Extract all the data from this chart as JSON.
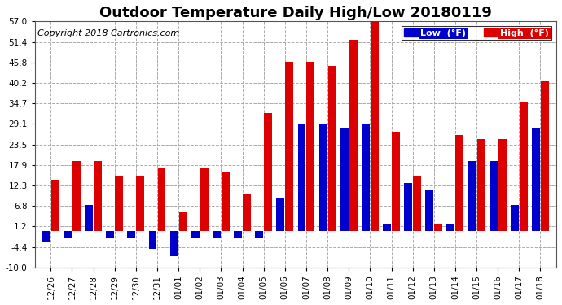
{
  "title": "Outdoor Temperature Daily High/Low 20180119",
  "copyright": "Copyright 2018 Cartronics.com",
  "dates": [
    "12/26",
    "12/27",
    "12/28",
    "12/29",
    "12/30",
    "12/31",
    "01/01",
    "01/02",
    "01/03",
    "01/04",
    "01/05",
    "01/06",
    "01/07",
    "01/08",
    "01/09",
    "01/10",
    "01/11",
    "01/12",
    "01/13",
    "01/14",
    "01/15",
    "01/16",
    "01/17",
    "01/18"
  ],
  "high": [
    14.0,
    19.0,
    19.0,
    15.0,
    15.0,
    17.0,
    5.0,
    17.0,
    16.0,
    10.0,
    32.0,
    46.0,
    46.0,
    45.0,
    52.0,
    57.0,
    27.0,
    15.0,
    2.0,
    26.0,
    25.0,
    25.0,
    35.0,
    41.0
  ],
  "low": [
    -3.0,
    -2.0,
    7.0,
    -2.0,
    -2.0,
    -5.0,
    -7.0,
    -2.0,
    -2.0,
    -2.0,
    -2.0,
    9.0,
    29.0,
    29.0,
    28.0,
    29.0,
    2.0,
    13.0,
    11.0,
    2.0,
    19.0,
    19.0,
    7.0,
    28.0
  ],
  "high_color": "#dd0000",
  "low_color": "#0000cc",
  "ylim_min": -10.0,
  "ylim_max": 57.0,
  "yticks": [
    -10.0,
    -4.4,
    1.2,
    6.8,
    12.3,
    17.9,
    23.5,
    29.1,
    34.7,
    40.2,
    45.8,
    51.4,
    57.0
  ],
  "bg_color": "#ffffff",
  "plot_bg": "#ffffff",
  "grid_color": "#aaaaaa",
  "title_fontsize": 13,
  "copyright_fontsize": 8,
  "legend_low_label": "Low  (°F)",
  "legend_high_label": "High  (°F)"
}
